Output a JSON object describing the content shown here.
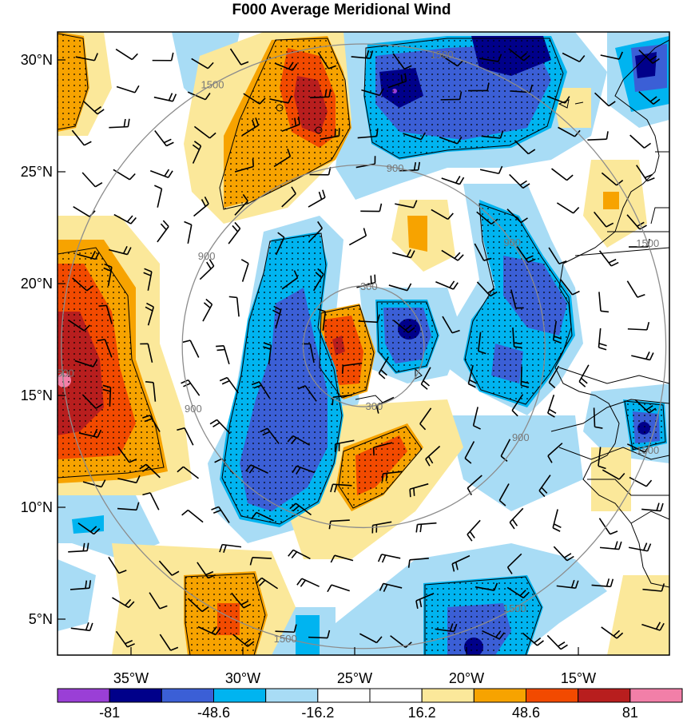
{
  "title": "F000 Average Meridional Wind",
  "map": {
    "lat_labels": [
      "30°N",
      "25°N",
      "20°N",
      "15°N",
      "10°N",
      "5°N"
    ],
    "lon_labels": [
      "35°W",
      "30°W",
      "25°W",
      "20°W",
      "15°W"
    ],
    "range_rings": [
      {
        "label": "300",
        "radius_km": 300
      },
      {
        "label": "900",
        "radius_km": 900
      },
      {
        "label": "1500",
        "radius_km": 1500
      }
    ],
    "ring_center": {
      "lat": 17.2,
      "lon": -24.6
    },
    "colors": {
      "ring": "#8c8c8c",
      "coast": "#000000"
    }
  },
  "colorbar": {
    "colors": [
      "#9a3fd6",
      "#00008a",
      "#3b5fd6",
      "#00b4f0",
      "#a8dcf5",
      "#ffffff",
      "#ffffff",
      "#fbe89a",
      "#f7a300",
      "#f24a00",
      "#b81e1e",
      "#f27fa8"
    ],
    "tick_labels": [
      "-81",
      "-48.6",
      "-16.2",
      "16.2",
      "48.6",
      "81"
    ]
  }
}
